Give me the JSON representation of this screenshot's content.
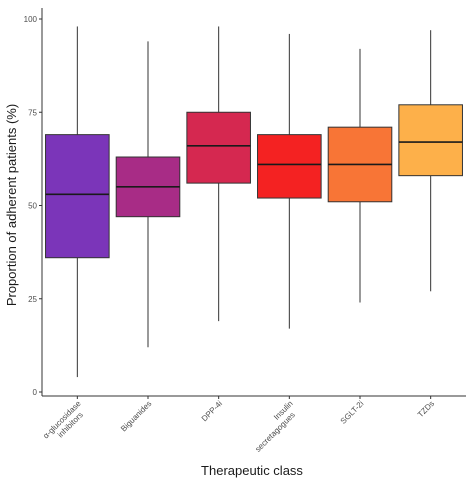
{
  "chart_data": {
    "type": "box",
    "xlabel": "Therapeutic class",
    "ylabel": "Proportion of adherent patients (%)",
    "ylim": [
      0,
      100
    ],
    "y_ticks": [
      0,
      25,
      50,
      75,
      100
    ],
    "grid": false,
    "categories": [
      {
        "label": [
          "α-glucosidase",
          "inhibitors"
        ],
        "color": "#7b35b9",
        "whisker_low": 4,
        "q1": 36,
        "median": 53,
        "q3": 69,
        "whisker_high": 98
      },
      {
        "label": [
          "Biguanides"
        ],
        "color": "#a82c86",
        "whisker_low": 12,
        "q1": 47,
        "median": 55,
        "q3": 63,
        "whisker_high": 94
      },
      {
        "label": [
          "DPP-4i"
        ],
        "color": "#d52850",
        "whisker_low": 19,
        "q1": 56,
        "median": 66,
        "q3": 75,
        "whisker_high": 98
      },
      {
        "label": [
          "Insulin",
          "secretagogues"
        ],
        "color": "#f42222",
        "whisker_low": 17,
        "q1": 52,
        "median": 61,
        "q3": 69,
        "whisker_high": 96
      },
      {
        "label": [
          "SGLT-2i"
        ],
        "color": "#f87536",
        "whisker_low": 24,
        "q1": 51,
        "median": 61,
        "q3": 71,
        "whisker_high": 92
      },
      {
        "label": [
          "TZDs"
        ],
        "color": "#fdb04a",
        "whisker_low": 27,
        "q1": 58,
        "median": 67,
        "q3": 77,
        "whisker_high": 97
      }
    ]
  }
}
